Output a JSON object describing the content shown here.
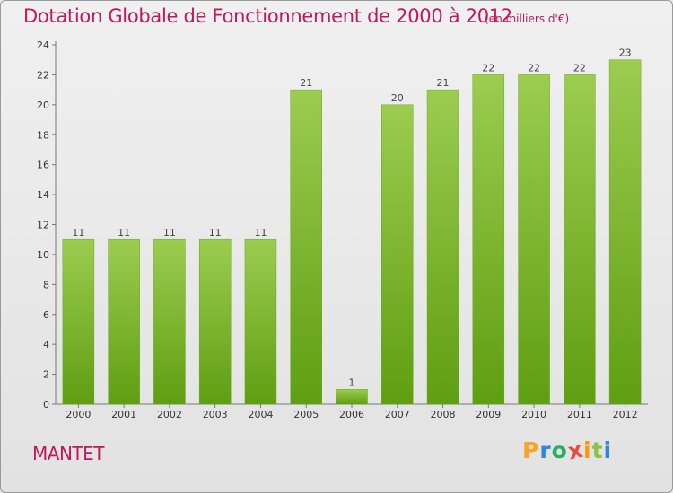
{
  "title": "Dotation Globale de Fonctionnement de 2000 à 2012",
  "subtitle": "(en milliers d'€)",
  "commune": "MANTET",
  "logo": {
    "letters": [
      "P",
      "r",
      "o",
      "x",
      "i",
      "t",
      "i"
    ],
    "colors": [
      "#f5a623",
      "#2e86de",
      "#27ae60",
      "#e74c3c",
      "#f39c12",
      "#8bc34a",
      "#2e86de"
    ]
  },
  "colors": {
    "bar_top": "#9ccc50",
    "bar_bottom": "#5f9e12",
    "title": "#c2185b"
  },
  "chart_data": {
    "type": "bar",
    "categories": [
      "2000",
      "2001",
      "2002",
      "2003",
      "2004",
      "2005",
      "2006",
      "2007",
      "2008",
      "2009",
      "2010",
      "2011",
      "2012"
    ],
    "values": [
      11,
      11,
      11,
      11,
      11,
      21,
      1,
      20,
      21,
      22,
      22,
      22,
      23
    ],
    "ylim": [
      0,
      24
    ],
    "yticks": [
      0,
      2,
      4,
      6,
      8,
      10,
      12,
      14,
      16,
      18,
      20,
      22,
      24
    ],
    "grid": false
  }
}
